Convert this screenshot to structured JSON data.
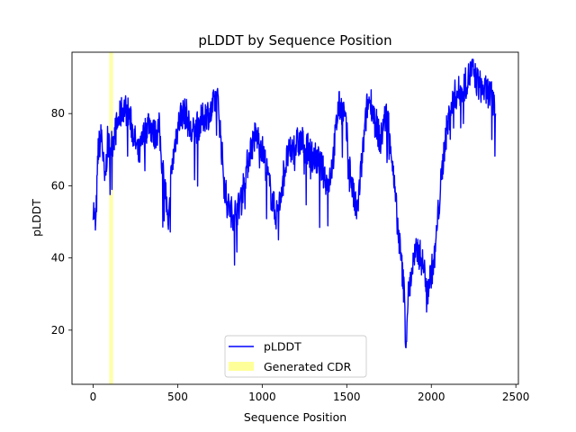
{
  "chart_data": {
    "type": "line",
    "title": "pLDDT by Sequence Position",
    "xlabel": "Sequence Position",
    "ylabel": "pLDDT",
    "xlim": [
      -125,
      2515
    ],
    "ylim": [
      5,
      97
    ],
    "xticks": [
      0,
      500,
      1000,
      1500,
      2000,
      2500
    ],
    "yticks": [
      20,
      40,
      60,
      80
    ],
    "grid": false,
    "legend_position": "bottom-center",
    "highlight": {
      "name": "Generated CDR",
      "x_start": 95,
      "x_end": 118,
      "color": "#ffff99"
    },
    "series": [
      {
        "name": "pLDDT",
        "color": "#0000ff",
        "anchors": [
          [
            0,
            55
          ],
          [
            15,
            48
          ],
          [
            30,
            70
          ],
          [
            50,
            74
          ],
          [
            70,
            60
          ],
          [
            85,
            72
          ],
          [
            100,
            70
          ],
          [
            125,
            74
          ],
          [
            150,
            78
          ],
          [
            180,
            82
          ],
          [
            210,
            80
          ],
          [
            240,
            74
          ],
          [
            270,
            68
          ],
          [
            300,
            74
          ],
          [
            330,
            78
          ],
          [
            360,
            74
          ],
          [
            390,
            76
          ],
          [
            410,
            65
          ],
          [
            430,
            58
          ],
          [
            445,
            46
          ],
          [
            460,
            62
          ],
          [
            490,
            74
          ],
          [
            520,
            80
          ],
          [
            550,
            80
          ],
          [
            580,
            74
          ],
          [
            610,
            76
          ],
          [
            640,
            78
          ],
          [
            670,
            80
          ],
          [
            700,
            80
          ],
          [
            720,
            84
          ],
          [
            740,
            83
          ],
          [
            760,
            70
          ],
          [
            780,
            59
          ],
          [
            800,
            54
          ],
          [
            830,
            52
          ],
          [
            860,
            54
          ],
          [
            880,
            58
          ],
          [
            900,
            63
          ],
          [
            930,
            70
          ],
          [
            960,
            74
          ],
          [
            990,
            72
          ],
          [
            1020,
            66
          ],
          [
            1050,
            58
          ],
          [
            1080,
            52
          ],
          [
            1100,
            54
          ],
          [
            1120,
            62
          ],
          [
            1150,
            68
          ],
          [
            1180,
            70
          ],
          [
            1210,
            72
          ],
          [
            1240,
            72
          ],
          [
            1270,
            70
          ],
          [
            1300,
            68
          ],
          [
            1330,
            67
          ],
          [
            1360,
            64
          ],
          [
            1390,
            60
          ],
          [
            1420,
            68
          ],
          [
            1450,
            82
          ],
          [
            1480,
            81
          ],
          [
            1500,
            74
          ],
          [
            1520,
            64
          ],
          [
            1540,
            57
          ],
          [
            1560,
            52
          ],
          [
            1580,
            62
          ],
          [
            1600,
            72
          ],
          [
            1620,
            82
          ],
          [
            1640,
            84
          ],
          [
            1660,
            80
          ],
          [
            1680,
            76
          ],
          [
            1700,
            72
          ],
          [
            1720,
            78
          ],
          [
            1740,
            80
          ],
          [
            1760,
            72
          ],
          [
            1780,
            60
          ],
          [
            1800,
            50
          ],
          [
            1820,
            40
          ],
          [
            1840,
            30
          ],
          [
            1850,
            15
          ],
          [
            1860,
            28
          ],
          [
            1880,
            35
          ],
          [
            1900,
            40
          ],
          [
            1920,
            42
          ],
          [
            1940,
            40
          ],
          [
            1960,
            36
          ],
          [
            1980,
            32
          ],
          [
            2000,
            36
          ],
          [
            2020,
            40
          ],
          [
            2040,
            52
          ],
          [
            2060,
            62
          ],
          [
            2080,
            72
          ],
          [
            2100,
            78
          ],
          [
            2120,
            82
          ],
          [
            2140,
            85
          ],
          [
            2160,
            86
          ],
          [
            2180,
            86
          ],
          [
            2200,
            88
          ],
          [
            2220,
            90
          ],
          [
            2240,
            92
          ],
          [
            2260,
            90
          ],
          [
            2280,
            88
          ],
          [
            2300,
            87
          ],
          [
            2320,
            86
          ],
          [
            2340,
            86
          ],
          [
            2360,
            84
          ],
          [
            2380,
            80
          ]
        ]
      }
    ]
  }
}
